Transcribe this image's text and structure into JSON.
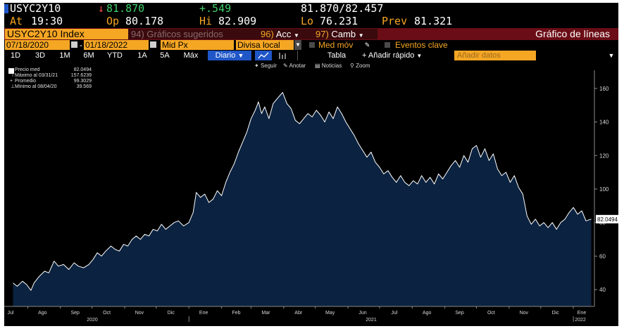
{
  "header": {
    "ticker": "USYC2Y10",
    "last_arrow": "↓",
    "last": "81.870",
    "change": "+.549",
    "bid_ask": "81.870/82.457",
    "at_label": "At",
    "at_time": "19:30",
    "op_label": "Op",
    "op_value": "80.178",
    "hi_label": "Hi",
    "hi_value": "82.909",
    "lo_label": "Lo",
    "lo_value": "76.231",
    "prev_label": "Prev",
    "prev_value": "81.321"
  },
  "toolbar": {
    "index_name": "USYC2Y10 Index",
    "suggested_num": "94)",
    "suggested_label": "Gráficos sugeridos",
    "actions_num": "96)",
    "actions_label": "Acc",
    "change_num": "97)",
    "change_label": "Camb",
    "chart_title": "Gráfico de líneas"
  },
  "controls": {
    "date_from": "07/18/2020",
    "date_sep": "-",
    "date_to": "01/18/2022",
    "price_field": "Mid Px",
    "currency_field": "Divisa local",
    "moving_avg": "Med móv",
    "key_events": "Eventos clave"
  },
  "periods": {
    "items": [
      "1D",
      "3D",
      "1M",
      "6M",
      "YTD",
      "1A",
      "5A",
      "Máx"
    ],
    "frequency": "Diario",
    "frequency_arrow": "▼",
    "table_label": "Tabla",
    "quick_add": "Añadir rápido",
    "add_data_placeholder": "Añadir datos",
    "menu_arrow": "▼"
  },
  "chart_tools": [
    "Seguir",
    "Anotar",
    "Noticias",
    "Zoom"
  ],
  "legend": {
    "items": [
      {
        "label": "Precio med",
        "value": "82.0494"
      },
      {
        "label": "Máximo al 03/31/21",
        "value": "157.6239"
      },
      {
        "label": "Promedio",
        "value": "99.3029"
      },
      {
        "label": "Mínimo al 08/04/20",
        "value": "39.569"
      }
    ]
  },
  "colors": {
    "background": "#000000",
    "area_fill": "#0b2240",
    "line": "#ffffff",
    "accent": "#f5a623",
    "up": "#3fcf6a",
    "down": "#ff4b4b",
    "title_bar": "#6b0d16",
    "frequency_button": "#1f56c8"
  },
  "chart_data": {
    "type": "area",
    "title": "",
    "xlabel": "",
    "ylabel": "",
    "ylim": [
      30,
      170
    ],
    "y_ticks": [
      40,
      60,
      80,
      100,
      120,
      140,
      160
    ],
    "grid": false,
    "x_month_labels": [
      "Jul",
      "Ago",
      "Sep",
      "Oct",
      "Nov",
      "Dic",
      "Ene",
      "Feb",
      "Mar",
      "Abr",
      "May",
      "Jun",
      "Jul",
      "Ago",
      "Sep",
      "Oct",
      "Nov",
      "Dic",
      "Ene"
    ],
    "x_year_labels": [
      "2020",
      "2021",
      "2022"
    ],
    "last_value_label": "82.0494",
    "series": [
      {
        "values": [
          [
            "2020-07-18",
            44
          ],
          [
            "2020-07-22",
            42
          ],
          [
            "2020-07-27",
            45
          ],
          [
            "2020-07-31",
            43
          ],
          [
            "2020-08-04",
            39.569
          ],
          [
            "2020-08-07",
            44
          ],
          [
            "2020-08-12",
            48
          ],
          [
            "2020-08-17",
            51
          ],
          [
            "2020-08-21",
            50
          ],
          [
            "2020-08-26",
            57
          ],
          [
            "2020-08-30",
            54
          ],
          [
            "2020-09-04",
            55
          ],
          [
            "2020-09-09",
            52
          ],
          [
            "2020-09-14",
            56
          ],
          [
            "2020-09-18",
            54
          ],
          [
            "2020-09-23",
            53
          ],
          [
            "2020-09-28",
            55
          ],
          [
            "2020-10-02",
            58
          ],
          [
            "2020-10-06",
            62
          ],
          [
            "2020-10-10",
            60
          ],
          [
            "2020-10-14",
            63
          ],
          [
            "2020-10-19",
            66
          ],
          [
            "2020-10-23",
            64
          ],
          [
            "2020-10-27",
            63
          ],
          [
            "2020-10-31",
            67
          ],
          [
            "2020-11-04",
            66
          ],
          [
            "2020-11-08",
            70
          ],
          [
            "2020-11-12",
            72
          ],
          [
            "2020-11-16",
            70
          ],
          [
            "2020-11-20",
            73
          ],
          [
            "2020-11-24",
            72
          ],
          [
            "2020-11-28",
            76
          ],
          [
            "2020-12-02",
            75
          ],
          [
            "2020-12-06",
            79
          ],
          [
            "2020-12-10",
            76
          ],
          [
            "2020-12-14",
            78
          ],
          [
            "2020-12-18",
            80
          ],
          [
            "2020-12-22",
            81
          ],
          [
            "2020-12-27",
            78
          ],
          [
            "2021-01-01",
            80
          ],
          [
            "2021-01-05",
            86
          ],
          [
            "2021-01-08",
            98
          ],
          [
            "2021-01-12",
            95
          ],
          [
            "2021-01-16",
            97
          ],
          [
            "2021-01-20",
            92
          ],
          [
            "2021-01-24",
            94
          ],
          [
            "2021-01-28",
            99
          ],
          [
            "2021-02-01",
            96
          ],
          [
            "2021-02-05",
            104
          ],
          [
            "2021-02-09",
            110
          ],
          [
            "2021-02-13",
            115
          ],
          [
            "2021-02-17",
            122
          ],
          [
            "2021-02-21",
            128
          ],
          [
            "2021-02-25",
            134
          ],
          [
            "2021-03-01",
            142
          ],
          [
            "2021-03-05",
            147
          ],
          [
            "2021-03-08",
            152
          ],
          [
            "2021-03-11",
            145
          ],
          [
            "2021-03-14",
            149
          ],
          [
            "2021-03-18",
            142
          ],
          [
            "2021-03-22",
            151
          ],
          [
            "2021-03-26",
            154
          ],
          [
            "2021-03-31",
            157.6239
          ],
          [
            "2021-04-04",
            151
          ],
          [
            "2021-04-08",
            148
          ],
          [
            "2021-04-12",
            141
          ],
          [
            "2021-04-16",
            139
          ],
          [
            "2021-04-20",
            142
          ],
          [
            "2021-04-24",
            145
          ],
          [
            "2021-04-28",
            143
          ],
          [
            "2021-05-02",
            147
          ],
          [
            "2021-05-06",
            144
          ],
          [
            "2021-05-10",
            140
          ],
          [
            "2021-05-14",
            146
          ],
          [
            "2021-05-18",
            142
          ],
          [
            "2021-05-22",
            149
          ],
          [
            "2021-05-26",
            145
          ],
          [
            "2021-05-30",
            140
          ],
          [
            "2021-06-03",
            136
          ],
          [
            "2021-06-07",
            132
          ],
          [
            "2021-06-11",
            127
          ],
          [
            "2021-06-15",
            123
          ],
          [
            "2021-06-19",
            119
          ],
          [
            "2021-06-23",
            122
          ],
          [
            "2021-06-27",
            116
          ],
          [
            "2021-07-01",
            113
          ],
          [
            "2021-07-05",
            109
          ],
          [
            "2021-07-09",
            111
          ],
          [
            "2021-07-13",
            107
          ],
          [
            "2021-07-17",
            104
          ],
          [
            "2021-07-21",
            108
          ],
          [
            "2021-07-25",
            104
          ],
          [
            "2021-07-29",
            102
          ],
          [
            "2021-08-02",
            105
          ],
          [
            "2021-08-06",
            103
          ],
          [
            "2021-08-10",
            108
          ],
          [
            "2021-08-14",
            104
          ],
          [
            "2021-08-18",
            107
          ],
          [
            "2021-08-22",
            103
          ],
          [
            "2021-08-26",
            109
          ],
          [
            "2021-08-30",
            106
          ],
          [
            "2021-09-03",
            110
          ],
          [
            "2021-09-07",
            114
          ],
          [
            "2021-09-11",
            117
          ],
          [
            "2021-09-15",
            113
          ],
          [
            "2021-09-19",
            120
          ],
          [
            "2021-09-23",
            116
          ],
          [
            "2021-09-27",
            124
          ],
          [
            "2021-10-01",
            126
          ],
          [
            "2021-10-05",
            119
          ],
          [
            "2021-10-09",
            124
          ],
          [
            "2021-10-13",
            117
          ],
          [
            "2021-10-17",
            121
          ],
          [
            "2021-10-21",
            112
          ],
          [
            "2021-10-25",
            108
          ],
          [
            "2021-10-29",
            110
          ],
          [
            "2021-11-02",
            104
          ],
          [
            "2021-11-06",
            108
          ],
          [
            "2021-11-10",
            101
          ],
          [
            "2021-11-14",
            97
          ],
          [
            "2021-11-18",
            84
          ],
          [
            "2021-11-22",
            79
          ],
          [
            "2021-11-26",
            82
          ],
          [
            "2021-11-30",
            78
          ],
          [
            "2021-12-04",
            80
          ],
          [
            "2021-12-08",
            77
          ],
          [
            "2021-12-12",
            80
          ],
          [
            "2021-12-16",
            76
          ],
          [
            "2021-12-20",
            80
          ],
          [
            "2021-12-24",
            82
          ],
          [
            "2021-12-28",
            86
          ],
          [
            "2022-01-01",
            89
          ],
          [
            "2022-01-05",
            85
          ],
          [
            "2022-01-09",
            87
          ],
          [
            "2022-01-13",
            81
          ],
          [
            "2022-01-18",
            82.0494
          ]
        ]
      }
    ]
  }
}
